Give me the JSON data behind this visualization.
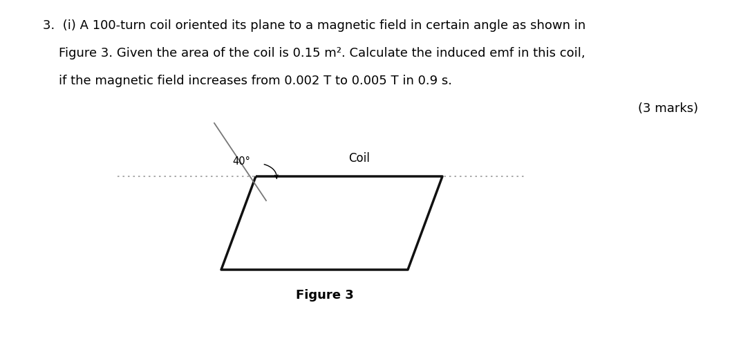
{
  "bg_color": "#ffffff",
  "text_color": "#000000",
  "line1": "3.  (i) A 100-turn coil oriented its plane to a magnetic field in certain angle as shown in",
  "line2": "    Figure 3. Given the area of the coil is 0.15 m². Calculate the induced emf in this coil,",
  "line3": "    if the magnetic field increases from 0.002 T to 0.005 T in 0.9 s.",
  "marks": "(3 marks)",
  "coil_label": "Coil",
  "angle_label": "40°",
  "fig_label": "Figure 3",
  "para_lw": 2.5,
  "needle_color": "#777777",
  "dot_color": "#999999",
  "para_color": "#111111"
}
